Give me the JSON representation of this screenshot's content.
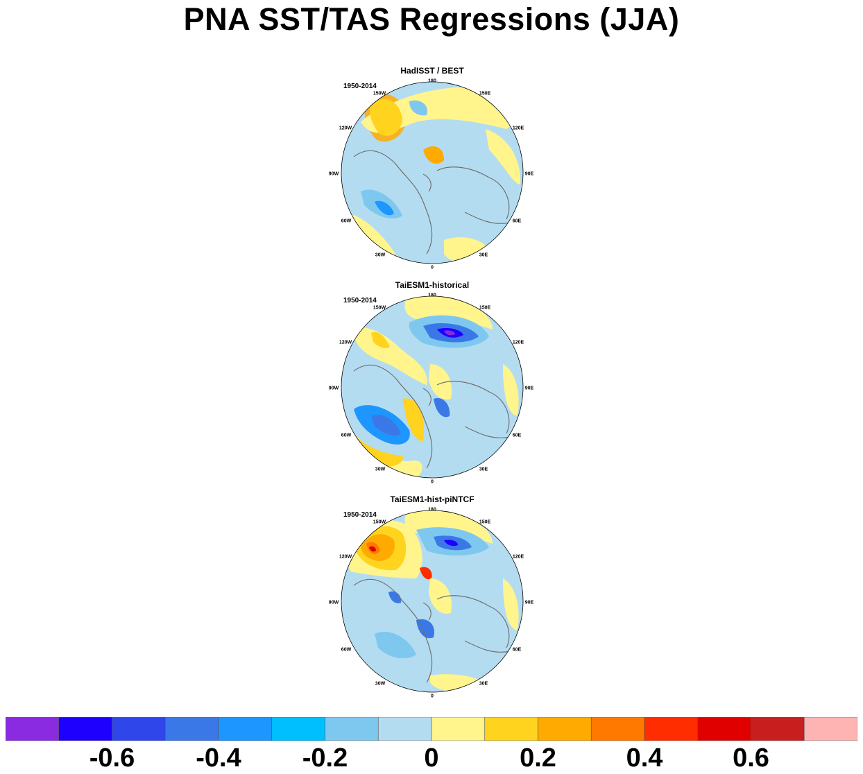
{
  "title": "PNA SST/TAS Regressions (JJA)",
  "panels": [
    {
      "title": "HadISST / BEST",
      "period": "1950-2014"
    },
    {
      "title": "TaiESM1-historical",
      "period": "1950-2014"
    },
    {
      "title": "TaiESM1-hist-piNTCF",
      "period": "1950-2014"
    }
  ],
  "longitude_labels": [
    "180",
    "150E",
    "120E",
    "90E",
    "60E",
    "30E",
    "0",
    "30W",
    "60W",
    "90W",
    "120W",
    "150W"
  ],
  "colorbar": {
    "colors": [
      "#8a2be2",
      "#1e00ff",
      "#2e46ea",
      "#3a78e8",
      "#1e96ff",
      "#00bfff",
      "#7ec8f0",
      "#b4dcf0",
      "#fff58c",
      "#ffd31e",
      "#ffaa00",
      "#ff7800",
      "#ff2d00",
      "#e10000",
      "#c81e1e",
      "#ffb4b4"
    ],
    "tick_labels": [
      "-0.6",
      "-0.4",
      "-0.2",
      "0",
      "0.2",
      "0.4",
      "0.6"
    ],
    "tick_values": [
      -0.6,
      -0.4,
      -0.2,
      0,
      0.2,
      0.4,
      0.6
    ]
  },
  "chart_data": {
    "type": "heatmap",
    "projection": "north polar stereographic",
    "variable": "SST/TAS regression onto PNA index",
    "season": "JJA",
    "levels": [
      -0.7,
      -0.6,
      -0.5,
      -0.4,
      -0.3,
      -0.2,
      -0.1,
      0,
      0.1,
      0.2,
      0.3,
      0.4,
      0.5,
      0.6,
      0.7
    ],
    "panels": [
      "HadISST / BEST",
      "TaiESM1-historical",
      "TaiESM1-hist-piNTCF"
    ]
  }
}
